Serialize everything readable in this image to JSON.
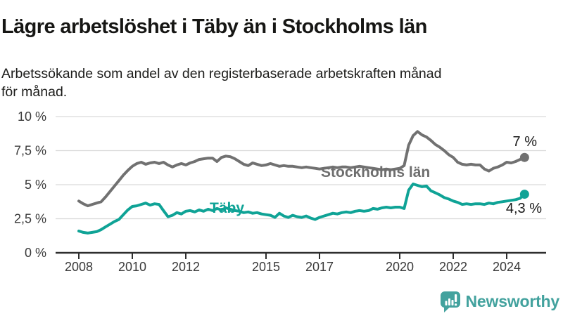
{
  "chart_data": {
    "type": "line",
    "title": "Lägre arbetslöshet i Täby än i Stockholms län",
    "subtitle_line1": "Arbetssökande som andel av den registerbaserade arbetskraften månad",
    "subtitle_line2": "för månad.",
    "x_unit": "year",
    "x_start": 2008,
    "x_step": 0.16667,
    "x_tick_values": [
      2008,
      2010,
      2012,
      2015,
      2017,
      2020,
      2022,
      2024
    ],
    "x_tick_labels": [
      "2008",
      "2010",
      "2012",
      "2015",
      "2017",
      "2020",
      "2022",
      "2024"
    ],
    "y_tick_values": [
      0,
      2.5,
      5,
      7.5,
      10
    ],
    "y_tick_labels": [
      "0 %",
      "2,5 %",
      "5 %",
      "7,5 %",
      "10 %"
    ],
    "ylim": [
      0,
      10
    ],
    "grid": "horizontal",
    "legend": "inline-labels",
    "axis_color": "#2e2e2e",
    "gridline_color": "#d9d9d9",
    "tick_label_color": "#3a3a3a",
    "value_label_color": "#1a1a1a",
    "series": [
      {
        "name": "Stockholms län",
        "color": "#717171",
        "end_value_label": "7 %",
        "values": [
          3.8,
          3.6,
          3.45,
          3.55,
          3.65,
          3.75,
          4.1,
          4.5,
          4.9,
          5.3,
          5.7,
          6.05,
          6.35,
          6.55,
          6.65,
          6.5,
          6.6,
          6.65,
          6.55,
          6.65,
          6.45,
          6.3,
          6.45,
          6.55,
          6.45,
          6.6,
          6.7,
          6.85,
          6.9,
          6.95,
          6.95,
          6.7,
          7.0,
          7.1,
          7.05,
          6.9,
          6.7,
          6.5,
          6.4,
          6.6,
          6.5,
          6.4,
          6.45,
          6.55,
          6.45,
          6.35,
          6.4,
          6.35,
          6.35,
          6.3,
          6.25,
          6.3,
          6.25,
          6.2,
          6.15,
          6.2,
          6.25,
          6.3,
          6.25,
          6.3,
          6.3,
          6.25,
          6.3,
          6.35,
          6.3,
          6.25,
          6.2,
          6.15,
          6.1,
          6.15,
          6.1,
          6.15,
          6.2,
          6.4,
          7.9,
          8.6,
          8.9,
          8.65,
          8.5,
          8.25,
          7.95,
          7.75,
          7.5,
          7.2,
          7.0,
          6.65,
          6.5,
          6.45,
          6.5,
          6.45,
          6.45,
          6.15,
          6.0,
          6.2,
          6.3,
          6.45,
          6.65,
          6.6,
          6.7,
          6.85,
          7.0
        ]
      },
      {
        "name": "Täby",
        "color": "#0fa396",
        "end_value_label": "4,3 %",
        "values": [
          1.6,
          1.5,
          1.45,
          1.5,
          1.55,
          1.7,
          1.9,
          2.1,
          2.3,
          2.45,
          2.8,
          3.15,
          3.4,
          3.45,
          3.55,
          3.65,
          3.5,
          3.6,
          3.55,
          3.1,
          2.65,
          2.75,
          2.95,
          2.85,
          3.05,
          3.1,
          3.0,
          3.15,
          3.05,
          3.2,
          3.1,
          3.25,
          3.15,
          3.3,
          3.2,
          3.1,
          3.05,
          2.95,
          3.0,
          2.9,
          2.95,
          2.85,
          2.8,
          2.75,
          2.6,
          2.9,
          2.7,
          2.6,
          2.75,
          2.65,
          2.6,
          2.7,
          2.55,
          2.45,
          2.6,
          2.7,
          2.8,
          2.9,
          2.85,
          2.95,
          3.0,
          2.95,
          3.05,
          3.1,
          3.05,
          3.1,
          3.25,
          3.2,
          3.3,
          3.35,
          3.3,
          3.35,
          3.35,
          3.25,
          4.6,
          5.05,
          4.95,
          4.85,
          4.9,
          4.55,
          4.4,
          4.25,
          4.05,
          3.95,
          3.8,
          3.7,
          3.55,
          3.6,
          3.55,
          3.6,
          3.6,
          3.55,
          3.65,
          3.6,
          3.7,
          3.75,
          3.8,
          3.85,
          3.9,
          4.0,
          4.3
        ]
      }
    ]
  },
  "footer": {
    "brand": "Newsworthy",
    "brand_color": "#43a29e",
    "icon": "newsworthy-bar-chart-bubble-icon"
  }
}
